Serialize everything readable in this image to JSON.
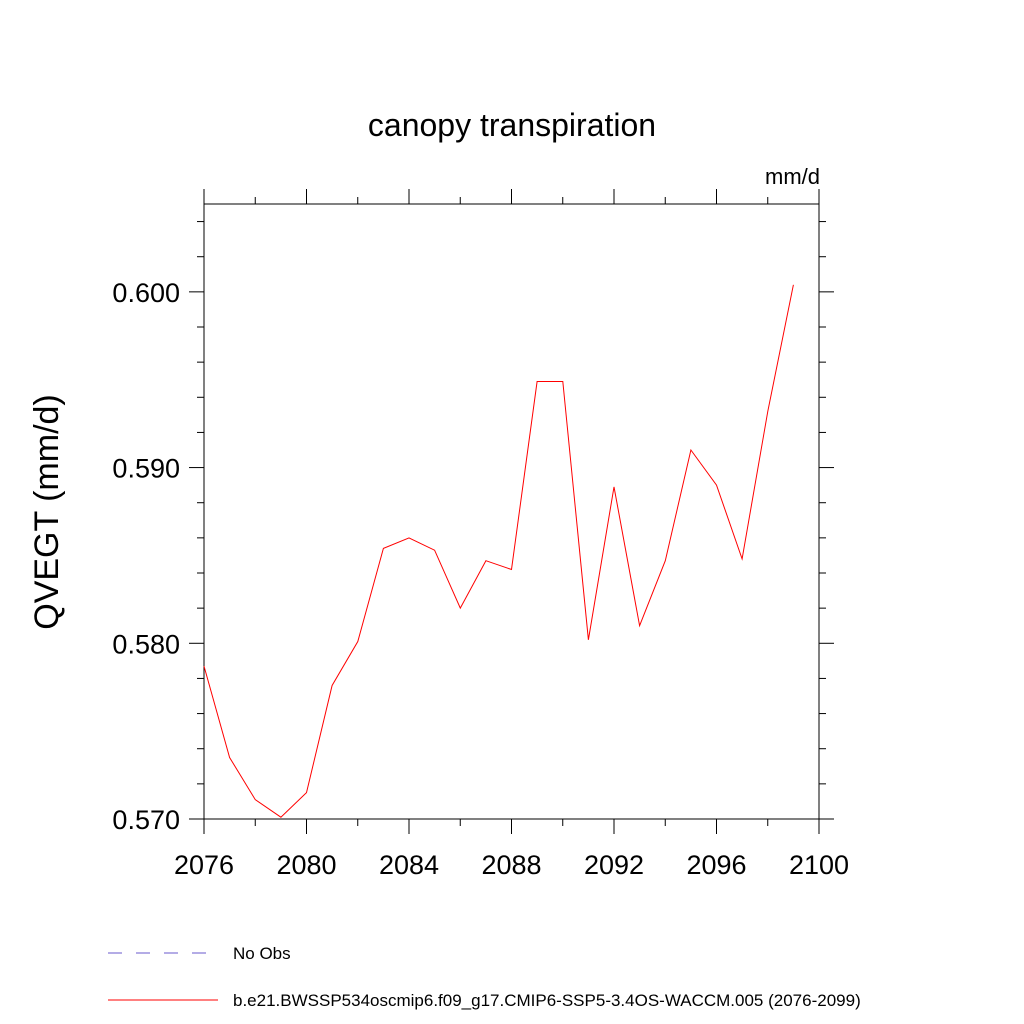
{
  "chart_data": {
    "type": "line",
    "title": "canopy transpiration",
    "units": "mm/d",
    "ylabel": "QVEGT  (mm/d)",
    "xlabel": "",
    "xlim": [
      2076,
      2100
    ],
    "ylim": [
      0.57,
      0.605
    ],
    "x_ticks": [
      2076,
      2080,
      2084,
      2088,
      2092,
      2096,
      2100
    ],
    "x_tick_labels": [
      "2076",
      "2080",
      "2084",
      "2088",
      "2092",
      "2096",
      "2100"
    ],
    "y_ticks": [
      0.57,
      0.58,
      0.59,
      0.6
    ],
    "y_tick_labels": [
      "0.570",
      "0.580",
      "0.590",
      "0.600"
    ],
    "grid": false,
    "series": [
      {
        "name": "b.e21.BWSSP534oscmip6.f09_g17.CMIP6-SSP5-3.4OS-WACCM.005 (2076-2099)",
        "color": "#ff0000",
        "dash": "solid",
        "x": [
          2076,
          2077,
          2078,
          2079,
          2080,
          2081,
          2082,
          2083,
          2084,
          2085,
          2086,
          2087,
          2088,
          2089,
          2090,
          2091,
          2092,
          2093,
          2094,
          2095,
          2096,
          2097,
          2098,
          2099
        ],
        "values": [
          0.5787,
          0.5735,
          0.5711,
          0.5701,
          0.5715,
          0.5776,
          0.5801,
          0.5854,
          0.586,
          0.5853,
          0.582,
          0.5847,
          0.5842,
          0.5949,
          0.5949,
          0.5802,
          0.5889,
          0.581,
          0.5847,
          0.591,
          0.589,
          0.5848,
          0.5932,
          0.6004
        ]
      }
    ],
    "legend": {
      "placement": "bottom",
      "entries": [
        {
          "label": "No Obs",
          "color": "#6a5acd",
          "dash": "dashed"
        },
        {
          "label": "b.e21.BWSSP534oscmip6.f09_g17.CMIP6-SSP5-3.4OS-WACCM.005 (2076-2099)",
          "color": "#ff0000",
          "dash": "solid"
        }
      ]
    }
  }
}
